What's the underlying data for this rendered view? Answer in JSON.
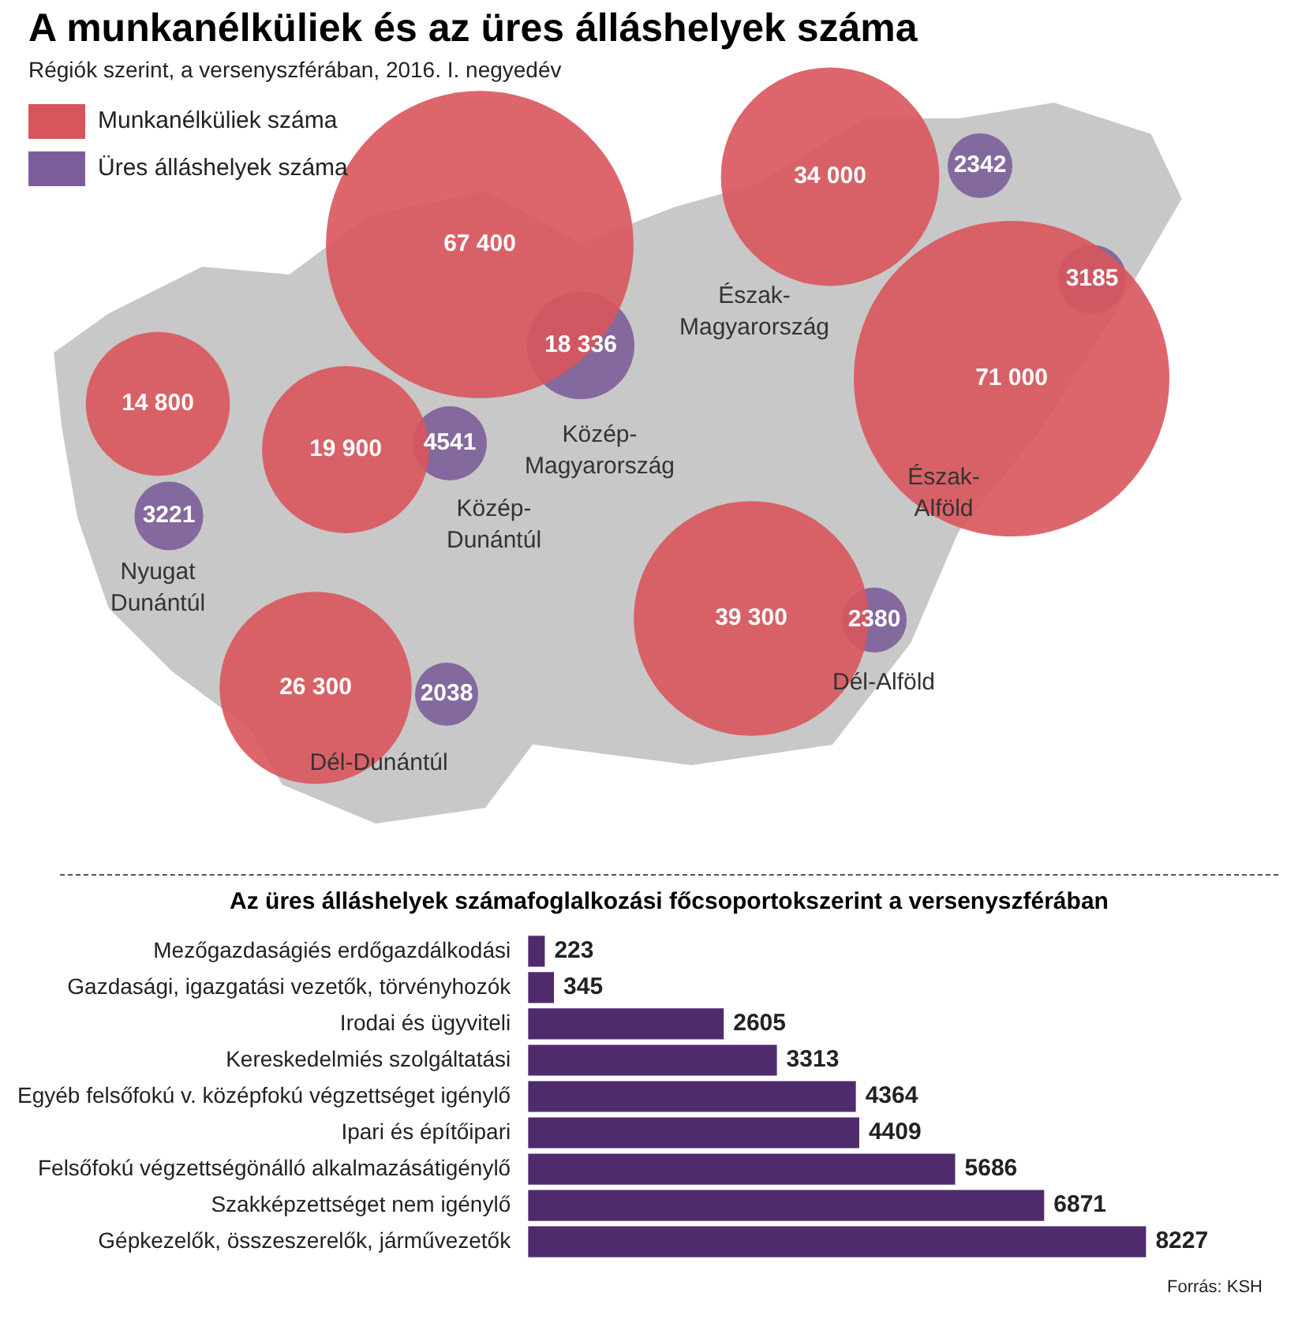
{
  "chart_data": [
    {
      "type": "other",
      "title": "A munkanélküliek és az üres álláshelyek száma",
      "subtitle": "Régiók szerint, a versenyszférában, 2016. I. negyedév",
      "legend": "top left",
      "categories": [
        "Nyugat Dunántúl",
        "Közép-Dunántúl",
        "Közép-Magyarország",
        "Észak-Magyarország",
        "Észak-Alföld",
        "Dél-Alföld",
        "Dél-Dunántúl"
      ],
      "series": [
        {
          "name": "Munkanélküliek száma",
          "color": "#d9555c",
          "values": [
            14800,
            19900,
            67400,
            34000,
            71000,
            39300,
            26300
          ],
          "value_labels": [
            "14 800",
            "19 900",
            "67 400",
            "34 000",
            "71 000",
            "39 300",
            "26 300"
          ]
        },
        {
          "name": "Üres álláshelyek száma",
          "color": "#7b5e99",
          "values": [
            3221,
            4541,
            18336,
            2342,
            3185,
            2380,
            2038
          ],
          "value_labels": [
            "3221",
            "4541",
            "18 336",
            "2342",
            "3185",
            "2380",
            "2038"
          ]
        }
      ]
    },
    {
      "type": "bar",
      "orientation": "horizontal",
      "title": "Az üres álláshelyek számafoglalkozási főcsoportokszerint a versenyszférában",
      "categories": [
        "Mezőgazdaságiés erdőgazdálkodási",
        "Gazdasági, igazgatási vezetők, törvényhozók",
        "Irodai és ügyviteli",
        "Kereskedelmiés szolgáltatási",
        "Egyéb felsőfokú v. középfokú végzettséget igénylő",
        "Ipari és építőipari",
        "Felsőfokú végzettségönálló alkalmazásátigénylő",
        "Szakképzettséget nem igénylő",
        "Gépkezelők, összeszerelők, járművezetők"
      ],
      "values": [
        223,
        345,
        2605,
        3313,
        4364,
        4409,
        5686,
        6871,
        8227
      ],
      "color": "#4f2b6d",
      "data_labels": true,
      "tick_labels": "y",
      "annotations": [
        "Forrás: KSH"
      ]
    }
  ]
}
